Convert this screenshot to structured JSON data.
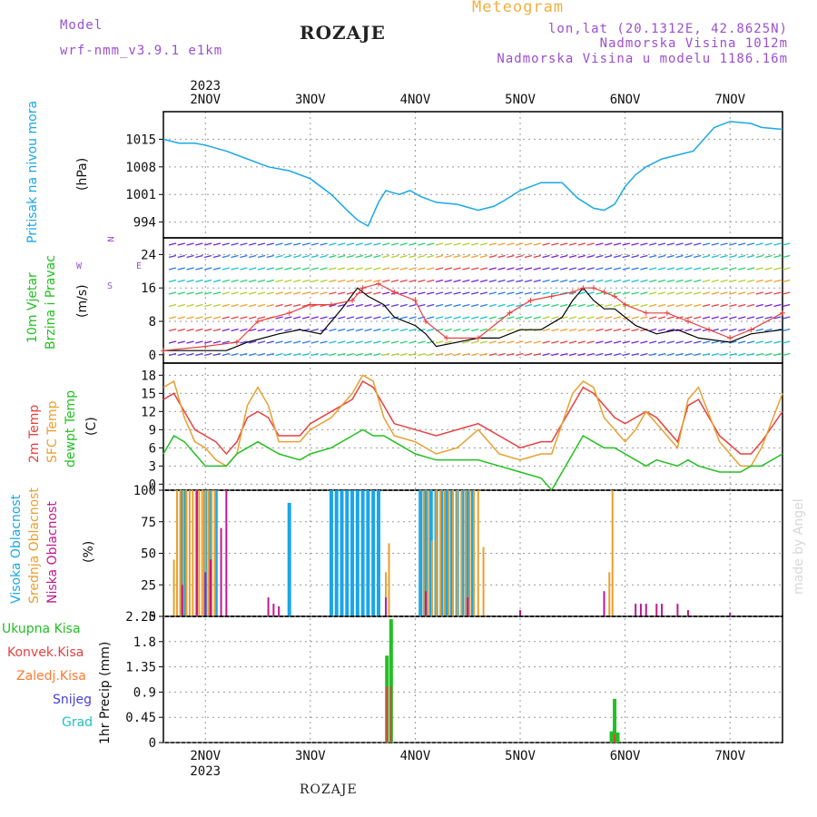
{
  "header": {
    "model_label": "Model",
    "model_name": "wrf-nmm_v3.9.1 e1km",
    "title": "ROZAJE",
    "meteogram": "Meteogram",
    "lonlat": "lon,lat (20.1312E, 42.8625N)",
    "elevation": "Nadmorska Visina 1012m",
    "model_elevation": "Nadmorska Visina u modelu 1186.16m"
  },
  "footer": {
    "station": "ROZAJE",
    "watermark": "made by Angel"
  },
  "axes": {
    "top_year": "2023",
    "bottom_year": "2023",
    "day_labels": [
      "2NOV",
      "3NOV",
      "4NOV",
      "5NOV",
      "6NOV",
      "7NOV"
    ]
  },
  "colors": {
    "pressure": "#1aa7e8",
    "temp2m": "#e84040",
    "sfc": "#e8a030",
    "dew": "#22c022",
    "high_cloud": "#1aa7e8",
    "mid_cloud": "#e8a030",
    "low_cloud": "#c01890",
    "precip": "#22c022",
    "conv": "#e84040",
    "wind_speed": "#000000",
    "gust": "#e84040"
  },
  "labels": {
    "pressure": [
      "Pritisak na nivou mora",
      "(hPa)"
    ],
    "wind": [
      "10m Vjetar",
      "Brzina i Pravac",
      "(m/s)"
    ],
    "temp": [
      "2m Temp",
      "SFC Temp",
      "dewpt Temp",
      "(C)"
    ],
    "cloud": [
      "Visoka Oblacnost",
      "Srednja Oblacnost",
      "Niska Oblacnost",
      "(%)"
    ],
    "precip_unit": "1hr Precip (mm)",
    "precip_legend": [
      "Ukupna Kisa",
      "Konvek.Kisa",
      "Zaledj.Kisa",
      "Snijeg",
      "Grad"
    ],
    "compass": {
      "n": "N",
      "s": "S",
      "w": "W",
      "e": "E"
    }
  },
  "chart_data": [
    {
      "type": "line",
      "panel": "pressure",
      "yticks": [
        994,
        1001,
        1008,
        1015
      ],
      "ylim": [
        990,
        1022
      ],
      "xlim": [
        1.6,
        7.5
      ],
      "series": [
        {
          "x": [
            1.6,
            1.75,
            1.9,
            2.0,
            2.2,
            2.4,
            2.5,
            2.6,
            2.8,
            3.0,
            3.2,
            3.35,
            3.45,
            3.55,
            3.6,
            3.65,
            3.72,
            3.78,
            3.85,
            3.95,
            4.05,
            4.2,
            4.4,
            4.6,
            4.75,
            4.85,
            5.0,
            5.2,
            5.4,
            5.55,
            5.7,
            5.8,
            5.9,
            6.0,
            6.1,
            6.2,
            6.35,
            6.5,
            6.65,
            6.75,
            6.85,
            7.0,
            7.2,
            7.3,
            7.5
          ],
          "y": [
            1015,
            1014,
            1014,
            1013.5,
            1012,
            1010,
            1009,
            1008,
            1007,
            1005,
            1001,
            997,
            994.5,
            993,
            996,
            999,
            1002,
            1001.5,
            1001,
            1002,
            1000.5,
            999,
            998.5,
            997,
            998,
            999.5,
            1002,
            1004,
            1004,
            1000,
            997.5,
            997,
            998.5,
            1003,
            1006,
            1008,
            1010,
            1011,
            1012,
            1015,
            1018,
            1019.5,
            1019,
            1018,
            1017.5
          ]
        }
      ]
    },
    {
      "type": "line",
      "panel": "wind",
      "yticks": [
        0,
        8,
        16,
        24
      ],
      "ylim": [
        -2,
        28
      ],
      "xlim": [
        1.6,
        7.5
      ],
      "series": [
        {
          "name": "speed",
          "x": [
            1.6,
            2.2,
            2.4,
            2.7,
            2.9,
            3.1,
            3.3,
            3.45,
            3.55,
            3.7,
            3.8,
            4.0,
            4.1,
            4.2,
            4.6,
            4.8,
            5.0,
            5.2,
            5.4,
            5.5,
            5.6,
            5.7,
            5.8,
            5.9,
            6.0,
            6.1,
            6.3,
            6.5,
            6.7,
            7.0,
            7.2,
            7.5
          ],
          "y": [
            1,
            1,
            3,
            5,
            6,
            5,
            11,
            16,
            14,
            12,
            9,
            7,
            5,
            2,
            4,
            4,
            6,
            6,
            9,
            13,
            16,
            13,
            11,
            11,
            9,
            7,
            5,
            6,
            4,
            3,
            5,
            6
          ]
        },
        {
          "name": "gust",
          "x": [
            1.6,
            2.0,
            2.3,
            2.5,
            2.8,
            3.0,
            3.2,
            3.4,
            3.5,
            3.65,
            3.8,
            4.0,
            4.1,
            4.3,
            4.6,
            4.9,
            5.1,
            5.3,
            5.5,
            5.6,
            5.7,
            5.8,
            5.9,
            6.0,
            6.2,
            6.4,
            6.6,
            6.8,
            7.0,
            7.2,
            7.5
          ],
          "y": [
            1,
            2,
            3,
            8,
            10,
            12,
            12,
            13,
            16,
            17,
            15,
            13,
            8,
            4,
            4,
            10,
            13,
            14,
            15,
            16,
            16,
            15,
            14,
            12,
            10,
            10,
            8,
            6,
            4,
            6,
            10
          ]
        }
      ]
    },
    {
      "type": "line",
      "panel": "temp",
      "yticks": [
        0,
        3,
        6,
        9,
        12,
        15,
        18
      ],
      "ylim": [
        -1,
        20
      ],
      "xlim": [
        1.6,
        7.5
      ],
      "series": [
        {
          "name": "2m",
          "x": [
            1.6,
            1.7,
            1.8,
            1.9,
            2.0,
            2.1,
            2.2,
            2.3,
            2.4,
            2.5,
            2.6,
            2.7,
            2.9,
            3.0,
            3.2,
            3.4,
            3.5,
            3.6,
            3.7,
            3.8,
            4.0,
            4.2,
            4.4,
            4.6,
            4.8,
            5.0,
            5.2,
            5.3,
            5.4,
            5.5,
            5.6,
            5.7,
            5.8,
            5.9,
            6.0,
            6.1,
            6.2,
            6.3,
            6.5,
            6.6,
            6.7,
            6.9,
            7.1,
            7.2,
            7.3,
            7.5
          ],
          "y": [
            14,
            15,
            12,
            9,
            8,
            7,
            5,
            7,
            11,
            12,
            11,
            8,
            8,
            10,
            12,
            14,
            17,
            16,
            13,
            10,
            9,
            8,
            9,
            10,
            8,
            6,
            7,
            7,
            10,
            13,
            16,
            15,
            13,
            11,
            10,
            11,
            12,
            11,
            7,
            13,
            14,
            8,
            5,
            5,
            7,
            12
          ]
        },
        {
          "name": "sfc",
          "x": [
            1.6,
            1.7,
            1.8,
            1.9,
            2.0,
            2.1,
            2.2,
            2.3,
            2.4,
            2.5,
            2.6,
            2.7,
            2.9,
            3.0,
            3.2,
            3.4,
            3.5,
            3.6,
            3.7,
            3.8,
            4.0,
            4.2,
            4.4,
            4.6,
            4.8,
            5.0,
            5.2,
            5.3,
            5.4,
            5.5,
            5.6,
            5.7,
            5.8,
            5.9,
            6.0,
            6.1,
            6.2,
            6.3,
            6.5,
            6.6,
            6.7,
            6.9,
            7.1,
            7.2,
            7.3,
            7.5
          ],
          "y": [
            16,
            17,
            11,
            7,
            6,
            4,
            3,
            5,
            13,
            16,
            13,
            7,
            7,
            9,
            11,
            15,
            18,
            17,
            11,
            8,
            7,
            5,
            6,
            9,
            5,
            4,
            5,
            5,
            10,
            15,
            17,
            16,
            11,
            9,
            7,
            9,
            12,
            10,
            6,
            14,
            16,
            7,
            3,
            3,
            6,
            15
          ]
        },
        {
          "name": "dewpt",
          "x": [
            1.6,
            1.7,
            1.8,
            1.9,
            2.0,
            2.1,
            2.2,
            2.3,
            2.4,
            2.5,
            2.6,
            2.7,
            2.9,
            3.0,
            3.2,
            3.4,
            3.5,
            3.6,
            3.7,
            3.8,
            4.0,
            4.2,
            4.4,
            4.6,
            4.8,
            5.0,
            5.2,
            5.3,
            5.4,
            5.5,
            5.6,
            5.7,
            5.8,
            5.9,
            6.0,
            6.1,
            6.2,
            6.3,
            6.5,
            6.6,
            6.7,
            6.9,
            7.1,
            7.2,
            7.3,
            7.5
          ],
          "y": [
            5,
            8,
            7,
            5,
            3,
            3,
            3,
            5,
            6,
            7,
            6,
            5,
            4,
            5,
            6,
            8,
            9,
            8,
            8,
            7,
            5,
            4,
            4,
            4,
            3,
            2,
            1,
            -1,
            2,
            5,
            8,
            7,
            6,
            6,
            5,
            4,
            3,
            4,
            3,
            4,
            3,
            2,
            2,
            3,
            3,
            5
          ]
        }
      ]
    },
    {
      "type": "bar",
      "panel": "cloud",
      "yticks": [
        0,
        25,
        50,
        75,
        100
      ],
      "ylim": [
        0,
        100
      ],
      "xlim": [
        1.6,
        7.5
      ],
      "series": [
        {
          "name": "high",
          "x": [
            1.77,
            1.8,
            2.0,
            2.05,
            2.1,
            2.8,
            3.2,
            3.25,
            3.3,
            3.35,
            3.4,
            3.45,
            3.5,
            3.55,
            3.6,
            3.65,
            4.05,
            4.1,
            4.15,
            4.2,
            4.25,
            4.3,
            4.35,
            4.4,
            4.45,
            4.5,
            4.55
          ],
          "values": [
            100,
            100,
            100,
            100,
            100,
            90,
            100,
            100,
            100,
            100,
            100,
            100,
            100,
            100,
            100,
            100,
            100,
            100,
            100,
            100,
            100,
            100,
            100,
            100,
            100,
            100,
            100
          ]
        },
        {
          "name": "mid",
          "x": [
            1.7,
            1.73,
            1.76,
            1.79,
            1.82,
            1.85,
            1.88,
            1.91,
            1.94,
            1.97,
            2.0,
            2.03,
            2.06,
            2.09,
            3.72,
            3.75,
            4.08,
            4.12,
            4.16,
            4.2,
            4.24,
            4.28,
            4.32,
            4.36,
            4.4,
            4.44,
            4.48,
            4.52,
            4.56,
            4.6,
            4.65,
            5.85,
            5.88
          ],
          "values": [
            45,
            100,
            100,
            100,
            100,
            100,
            100,
            100,
            100,
            100,
            100,
            100,
            100,
            100,
            35,
            58,
            100,
            100,
            60,
            100,
            100,
            100,
            100,
            100,
            100,
            100,
            100,
            100,
            100,
            100,
            55,
            35,
            100
          ]
        },
        {
          "name": "low",
          "x": [
            1.78,
            1.92,
            2.0,
            2.05,
            2.15,
            2.2,
            2.6,
            2.65,
            2.7,
            3.72,
            4.1,
            4.5,
            5.0,
            5.8,
            6.1,
            6.15,
            6.2,
            6.3,
            6.35,
            6.5,
            6.6,
            7.0
          ],
          "values": [
            25,
            100,
            35,
            45,
            70,
            100,
            15,
            10,
            8,
            15,
            20,
            15,
            5,
            20,
            10,
            10,
            10,
            10,
            10,
            10,
            5,
            3
          ]
        }
      ]
    },
    {
      "type": "bar",
      "panel": "precip",
      "yticks": [
        0,
        0.45,
        0.9,
        1.35,
        1.8,
        2.25
      ],
      "ylim": [
        0,
        2.25
      ],
      "xlim": [
        1.6,
        7.5
      ],
      "series": [
        {
          "name": "total",
          "x": [
            3.73,
            3.77,
            5.87,
            5.9,
            5.93
          ],
          "values": [
            1.55,
            2.2,
            0.2,
            0.78,
            0.18
          ]
        },
        {
          "name": "conv",
          "x": [
            3.73,
            3.77,
            5.9
          ],
          "values": [
            1.0,
            1.0,
            0.15
          ]
        }
      ]
    }
  ]
}
